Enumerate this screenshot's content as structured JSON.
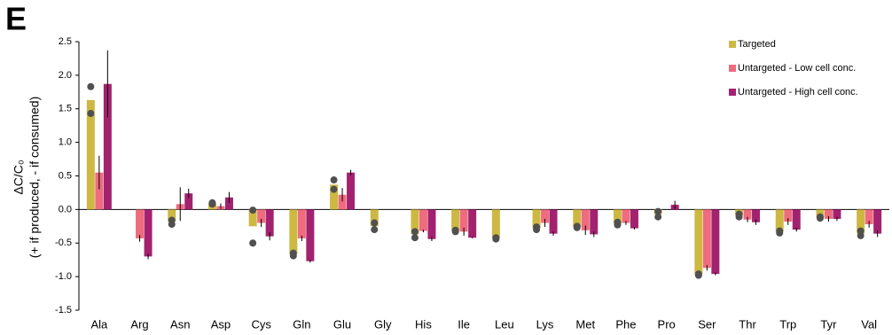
{
  "chart_data": {
    "type": "bar",
    "panel_label": "E",
    "ylabel": [
      "ΔC/C₀",
      "(+ if produced, - if consumed)"
    ],
    "categories": [
      "Ala",
      "Arg",
      "Asn",
      "Asp",
      "Cys",
      "Gln",
      "Glu",
      "Gly",
      "His",
      "Ile",
      "Leu",
      "Lys",
      "Met",
      "Phe",
      "Pro",
      "Ser",
      "Thr",
      "Trp",
      "Tyr",
      "Val"
    ],
    "ylim": [
      -1.5,
      2.5
    ],
    "yticks": [
      2.5,
      {
        "value": 2,
        "label": "2.0"
      },
      1.5,
      {
        "value": 1,
        "label": "1.0"
      },
      0.5,
      {
        "value": 0,
        "label": "0.0"
      },
      -0.5,
      {
        "value": -1,
        "label": "-1.0"
      },
      -1.5
    ],
    "legend": "top-right",
    "point_color": "#505050",
    "series": [
      {
        "name": "Targeted",
        "color": "#cdb842",
        "values": [
          1.63,
          null,
          -0.18,
          0.09,
          -0.25,
          -0.67,
          0.37,
          -0.25,
          -0.37,
          -0.32,
          -0.43,
          -0.28,
          -0.26,
          -0.21,
          -0.07,
          -0.97,
          -0.09,
          -0.33,
          -0.12,
          -0.36
        ],
        "points": [
          [
            1.83,
            1.43
          ],
          null,
          [
            -0.16,
            -0.22
          ],
          [
            0.1,
            0.08
          ],
          [
            -0.01,
            -0.5
          ],
          [
            -0.65,
            -0.69
          ],
          [
            0.44,
            0.3
          ],
          [
            -0.2,
            -0.3
          ],
          [
            -0.33,
            -0.42
          ],
          [
            -0.31,
            -0.33
          ],
          [
            -0.42,
            -0.44
          ],
          [
            -0.26,
            -0.3
          ],
          [
            -0.25,
            -0.27
          ],
          [
            -0.19,
            -0.23
          ],
          [
            -0.03,
            -0.11
          ],
          [
            -0.96,
            -0.98
          ],
          [
            -0.07,
            -0.11
          ],
          [
            -0.32,
            -0.35
          ],
          [
            -0.11,
            -0.13
          ],
          [
            -0.32,
            -0.39
          ]
        ]
      },
      {
        "name": "Untargeted - Low cell conc.",
        "color": "#ef6b7e",
        "values": [
          0.55,
          -0.43,
          0.08,
          0.05,
          -0.2,
          -0.43,
          0.22,
          null,
          -0.32,
          -0.33,
          null,
          -0.2,
          -0.31,
          -0.2,
          null,
          -0.87,
          -0.15,
          -0.18,
          -0.14,
          -0.22
        ],
        "errors": [
          0.25,
          0.05,
          0.25,
          0.04,
          0.06,
          0.04,
          0.1,
          null,
          0.02,
          0.06,
          null,
          0.06,
          0.07,
          0.03,
          null,
          0.04,
          0.04,
          0.05,
          0.04,
          0.05
        ]
      },
      {
        "name": "Untargeted - High cell conc.",
        "color": "#a3226f",
        "values": [
          1.87,
          -0.7,
          0.24,
          0.18,
          -0.4,
          -0.77,
          0.55,
          null,
          -0.44,
          -0.42,
          null,
          -0.36,
          -0.37,
          -0.28,
          0.07,
          -0.96,
          -0.19,
          -0.3,
          -0.14,
          -0.36
        ],
        "errors": [
          0.5,
          0.04,
          0.07,
          0.08,
          0.06,
          0.02,
          0.04,
          null,
          0.03,
          0.01,
          null,
          0.03,
          0.04,
          0.02,
          0.06,
          0.02,
          0.04,
          0.03,
          0.03,
          0.05
        ]
      }
    ]
  }
}
